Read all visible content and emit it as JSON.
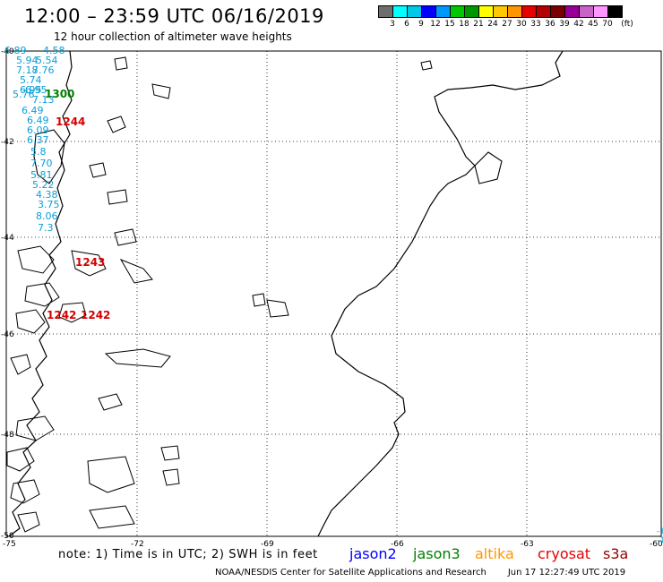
{
  "header": {
    "title": "12:00 – 23:59 UTC 06/16/2019",
    "subtitle": "12 hour collection of altimeter wave heights"
  },
  "color_scale": {
    "colors": [
      "#6e6e6e",
      "#00ffff",
      "#00c8e6",
      "#0000ff",
      "#0096ff",
      "#00c800",
      "#009600",
      "#ffff00",
      "#ffc800",
      "#ff9600",
      "#e60000",
      "#b40000",
      "#780000",
      "#960096",
      "#c864c8",
      "#ff96ff",
      "#000000"
    ],
    "labels": [
      "3",
      "6",
      "9",
      "12",
      "15",
      "18",
      "21",
      "24",
      "27",
      "30",
      "33",
      "36",
      "39",
      "42",
      "45",
      "70",
      "(ft)"
    ]
  },
  "axes": {
    "lat_labels": [
      "-40",
      "-42",
      "-44",
      "-46",
      "-48",
      "-50"
    ],
    "lon_labels": [
      "-75",
      "-72",
      "-69",
      "-66",
      "-63",
      "-60"
    ],
    "right_edge_labels": [
      "-1",
      "-1"
    ]
  },
  "observations": {
    "swh_cyan": [
      "6.89",
      "4.58",
      "5.94",
      "5.54",
      "7.18",
      "7.76",
      "5.74",
      "6.95",
      "6.95",
      "5.76",
      "7.13",
      "6.49",
      "6.49",
      "6.09",
      "6.37",
      "5.8",
      "7.70",
      "5.81",
      "5.22",
      "4.38",
      "3.75",
      "8.06",
      "7.3"
    ],
    "times": [
      {
        "text": "1300",
        "color": "#008000"
      },
      {
        "text": "1244",
        "color": "#d40000"
      },
      {
        "text": "1243",
        "color": "#d40000"
      },
      {
        "text": "1242",
        "color": "#d40000"
      },
      {
        "text": "1242",
        "color": "#d40000"
      }
    ]
  },
  "footer": {
    "note": "note:  1) Time is in UTC;  2) SWH is in feet",
    "satellites": [
      {
        "name": "jason2",
        "color": "#0000ff"
      },
      {
        "name": "jason3",
        "color": "#008000"
      },
      {
        "name": "altika",
        "color": "#ff9600"
      },
      {
        "name": "cryosat",
        "color": "#e60000"
      },
      {
        "name": "s3a",
        "color": "#960000"
      }
    ],
    "credit": "NOAA/NESDIS Center for Satellite Applications and Research",
    "timestamp": "Jun 17 12:27:49 UTC 2019"
  }
}
